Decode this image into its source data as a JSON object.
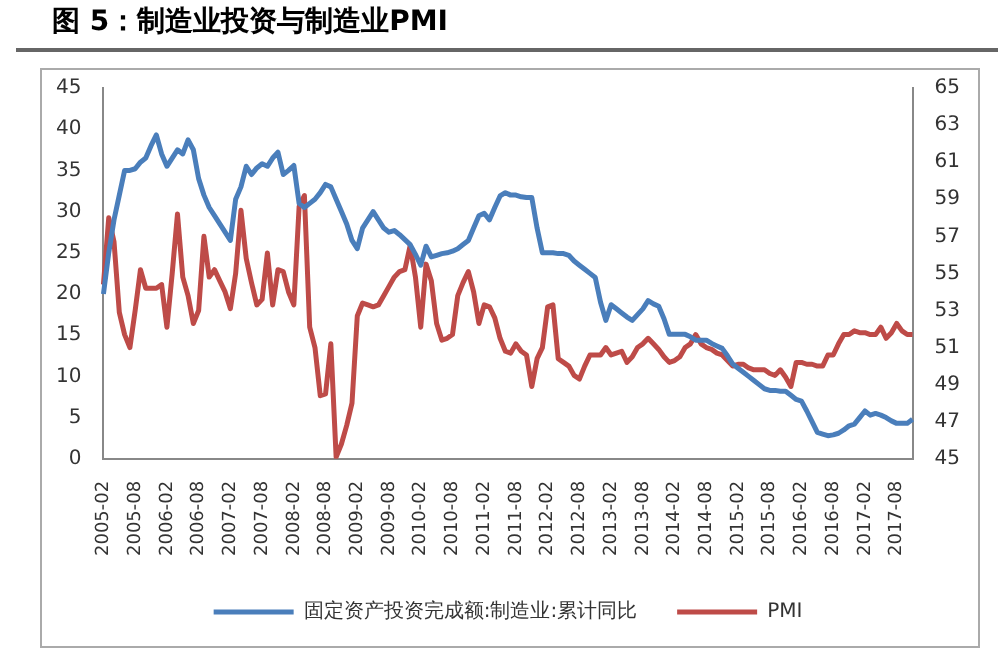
{
  "chart_data": {
    "type": "line",
    "title": "图 5：制造业投资与制造业PMI",
    "categories": [
      "2005-02",
      null,
      null,
      null,
      null,
      null,
      "2005-08",
      null,
      null,
      null,
      null,
      null,
      "2006-02",
      null,
      null,
      null,
      null,
      null,
      "2006-08",
      null,
      null,
      null,
      null,
      null,
      "2007-02",
      null,
      null,
      null,
      null,
      null,
      "2007-08",
      null,
      null,
      null,
      null,
      null,
      "2008-02",
      null,
      null,
      null,
      null,
      null,
      "2008-08",
      null,
      null,
      null,
      null,
      null,
      "2009-02",
      null,
      null,
      null,
      null,
      null,
      "2009-08",
      null,
      null,
      null,
      null,
      null,
      "2010-02",
      null,
      null,
      null,
      null,
      null,
      "2010-08",
      null,
      null,
      null,
      null,
      null,
      "2011-02",
      null,
      null,
      null,
      null,
      null,
      "2011-08",
      null,
      null,
      null,
      null,
      null,
      "2012-02",
      null,
      null,
      null,
      null,
      null,
      "2012-08",
      null,
      null,
      null,
      null,
      null,
      "2013-02",
      null,
      null,
      null,
      null,
      null,
      "2013-08",
      null,
      null,
      null,
      null,
      null,
      "2014-02",
      null,
      null,
      null,
      null,
      null,
      "2014-08",
      null,
      null,
      null,
      null,
      null,
      "2015-02",
      null,
      null,
      null,
      null,
      null,
      "2015-08",
      null,
      null,
      null,
      null,
      null,
      "2016-02",
      null,
      null,
      null,
      null,
      null,
      "2016-08",
      null,
      null,
      null,
      null,
      null,
      "2017-02",
      null,
      null,
      null,
      null,
      null,
      "2017-08",
      null,
      null,
      null
    ],
    "series": [
      {
        "name": "固定资产投资完成额:制造业:累计同比",
        "color": "#4a7ebb",
        "values": [
          20,
          25,
          29,
          32,
          35,
          35,
          35.2,
          36,
          36.5,
          38,
          39.3,
          37,
          35.5,
          36.5,
          37.5,
          37,
          38.7,
          37.5,
          34,
          32,
          30.5,
          29.5,
          28.5,
          27.5,
          26.5,
          31.5,
          33,
          35.5,
          34.5,
          35.3,
          35.8,
          35.5,
          36.5,
          37.2,
          34.5,
          35,
          35.6,
          31,
          30.5,
          31,
          31.5,
          32.3,
          33.3,
          33,
          31.5,
          30,
          28.5,
          26.5,
          25.5,
          28,
          29,
          30,
          29,
          28,
          27.5,
          27.7,
          27.2,
          26.6,
          26,
          24.8,
          23.5,
          25.8,
          24.5,
          24.7,
          24.9,
          25,
          25.2,
          25.5,
          26,
          26.5,
          28,
          29.5,
          29.8,
          29,
          30.5,
          31.9,
          32.3,
          32,
          32,
          31.8,
          31.7,
          31.7,
          28,
          25,
          25,
          25,
          24.9,
          24.9,
          24.7,
          24,
          23.5,
          23,
          22.5,
          22,
          19,
          16.8,
          18.7,
          18.2,
          17.7,
          17.2,
          16.8,
          17.5,
          18.2,
          19.2,
          18.8,
          18.5,
          17,
          15.1,
          15.1,
          15.1,
          15.1,
          14.8,
          14.4,
          14.4,
          14.4,
          14,
          13.7,
          13.4,
          12.5,
          11.5,
          11,
          10.5,
          10,
          9.5,
          9,
          8.5,
          8.3,
          8.3,
          8.2,
          8.2,
          7.7,
          7.2,
          7,
          5.8,
          4.5,
          3.2,
          3,
          2.8,
          2.9,
          3.1,
          3.5,
          4,
          4.2,
          5,
          5.8,
          5.3,
          5.5,
          5.3,
          5,
          4.6,
          4.3,
          4.3,
          4.3,
          4.8
        ]
      },
      {
        "name": "PMI",
        "color": "#be4b48",
        "axis": "y2",
        "values": [
          54.4,
          58,
          56.7,
          52.9,
          51.7,
          51,
          53,
          55.2,
          54.2,
          54.2,
          54.2,
          54.4,
          52.1,
          55,
          58.2,
          54.8,
          53.8,
          52.3,
          53,
          57,
          54.8,
          55.2,
          54.6,
          54,
          53.1,
          55,
          58.4,
          55.8,
          54.5,
          53.3,
          53.6,
          56.1,
          53.3,
          55.2,
          55.1,
          54,
          53.3,
          58.6,
          59.2,
          52.1,
          51,
          48.4,
          48.5,
          51.2,
          45.1,
          45.8,
          46.8,
          48,
          52.7,
          53.4,
          53.3,
          53.2,
          53.3,
          53.8,
          54.3,
          54.8,
          55.1,
          55.2,
          56.5,
          54.8,
          52.1,
          55.5,
          54.6,
          52.3,
          51.4,
          51.5,
          51.7,
          53.8,
          54.5,
          55.1,
          54,
          52.3,
          53.3,
          53.2,
          52.6,
          51.5,
          50.8,
          50.7,
          51.2,
          50.8,
          50.6,
          48.9,
          50.4,
          51,
          53.2,
          53.3,
          50.4,
          50.2,
          50,
          49.5,
          49.3,
          50,
          50.6,
          50.6,
          50.6,
          51,
          50.6,
          50.7,
          50.8,
          50.2,
          50.5,
          51,
          51.2,
          51.5,
          51.2,
          50.9,
          50.5,
          50.2,
          50.3,
          50.5,
          51,
          51.2,
          51.7,
          51.2,
          51,
          50.9,
          50.7,
          50.6,
          50.3,
          50,
          50.1,
          50.1,
          49.9,
          49.8,
          49.8,
          49.8,
          49.6,
          49.5,
          49.8,
          49.4,
          48.9,
          50.2,
          50.2,
          50.1,
          50.1,
          50,
          50,
          50.6,
          50.6,
          51.2,
          51.7,
          51.7,
          51.9,
          51.8,
          51.8,
          51.7,
          51.7,
          52.1,
          51.5,
          51.8,
          52.3,
          51.9,
          51.7,
          51.7
        ]
      }
    ],
    "ylim": [
      0,
      45
    ],
    "yticks": [
      0,
      5,
      10,
      15,
      20,
      25,
      30,
      35,
      40,
      45
    ],
    "y2lim": [
      45,
      65
    ],
    "y2ticks": [
      45,
      47,
      49,
      51,
      53,
      55,
      57,
      59,
      61,
      63,
      65
    ],
    "legend": "bottom"
  }
}
